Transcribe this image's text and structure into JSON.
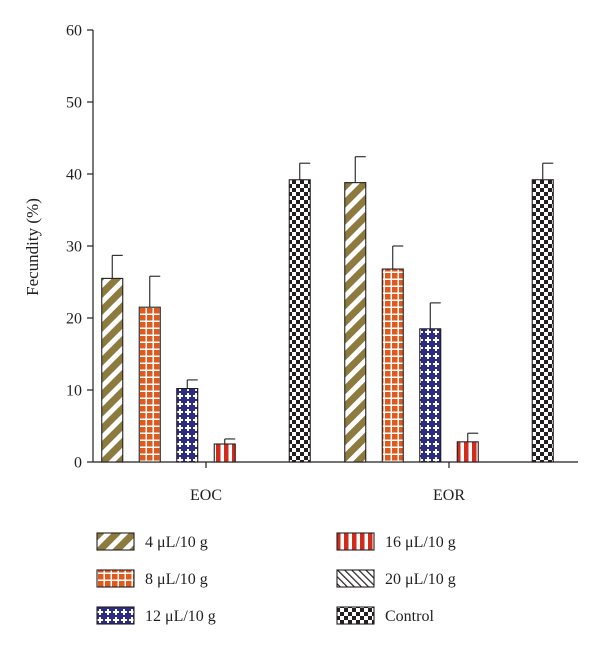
{
  "chart_data": {
    "type": "bar",
    "title": "",
    "xlabel": "",
    "ylabel": "Fecundity (%)",
    "ylim": [
      0,
      60
    ],
    "yticks": [
      0,
      10,
      20,
      30,
      40,
      50,
      60
    ],
    "grid": false,
    "legend_position": "bottom",
    "categories": [
      "EOC",
      "EOR"
    ],
    "series": [
      {
        "name": "4 μL/10 g",
        "values": [
          25.5,
          38.8
        ],
        "errors": [
          3.2,
          3.6
        ],
        "color": "#8c7a3e",
        "pattern": "diagonal-stripes"
      },
      {
        "name": "8 μL/10 g",
        "values": [
          21.5,
          26.8
        ],
        "errors": [
          4.3,
          3.2
        ],
        "color": "#de5a1e",
        "pattern": "grid"
      },
      {
        "name": "12 μL/10 g",
        "values": [
          10.2,
          18.5
        ],
        "errors": [
          1.2,
          3.6
        ],
        "color": "#2c2c82",
        "pattern": "plus"
      },
      {
        "name": "16 μL/10 g",
        "values": [
          2.5,
          2.8
        ],
        "errors": [
          0.7,
          1.2
        ],
        "color": "#d12b1b",
        "pattern": "vertical-stripes"
      },
      {
        "name": "20 μL/10 g",
        "values": [
          0,
          0
        ],
        "errors": [
          0,
          0
        ],
        "color": "#231f20",
        "pattern": "hatch"
      },
      {
        "name": "Control",
        "values": [
          39.2,
          39.2
        ],
        "errors": [
          2.3,
          2.3
        ],
        "color": "#231f20",
        "pattern": "checker"
      }
    ]
  }
}
